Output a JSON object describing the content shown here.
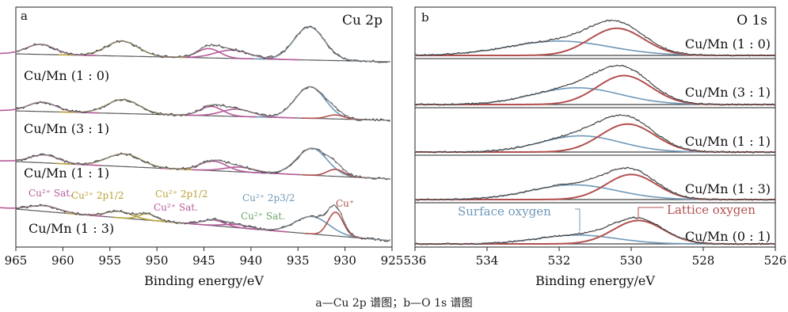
{
  "caption": "a—Cu 2p 谱图；b—O 1s 谱图",
  "chart_data": [
    {
      "type": "line",
      "panel": "a",
      "title": "Cu 2p",
      "xlabel": "Binding energy/eV",
      "xlim": [
        965,
        925
      ],
      "x_ticks": [
        965,
        960,
        955,
        950,
        945,
        940,
        935,
        930,
        925
      ],
      "colors": {
        "raw": "#333333",
        "fit": "#8a8a8a",
        "background": "#5a5a5a",
        "cu2p32": "#6f98b8",
        "cu_plus": "#b2504f",
        "sat": "#b65a9a",
        "cu2p12": "#b9a23a",
        "green": "#6ea36a"
      },
      "spectra": [
        {
          "label": "Cu/Mn (1 : 0)",
          "peaks": [
            {
              "center": 933.8,
              "height": 1.0,
              "width": 1.6,
              "component": "cu2p32"
            },
            {
              "center": 942.0,
              "height": 0.25,
              "width": 1.8,
              "component": "sat"
            },
            {
              "center": 944.5,
              "height": 0.28,
              "width": 1.2,
              "component": "sat"
            },
            {
              "center": 953.7,
              "height": 0.45,
              "width": 1.7,
              "component": "cu2p12"
            },
            {
              "center": 962.4,
              "height": 0.3,
              "width": 1.5,
              "component": "sat"
            }
          ]
        },
        {
          "label": "Cu/Mn (3 : 1)",
          "peaks": [
            {
              "center": 933.7,
              "height": 0.95,
              "width": 1.6,
              "component": "cu2p32"
            },
            {
              "center": 931.0,
              "height": 0.12,
              "width": 0.9,
              "component": "cu_plus"
            },
            {
              "center": 941.5,
              "height": 0.22,
              "width": 1.6,
              "component": "sat"
            },
            {
              "center": 944.2,
              "height": 0.28,
              "width": 1.2,
              "component": "sat"
            },
            {
              "center": 953.6,
              "height": 0.42,
              "width": 1.7,
              "component": "cu2p12"
            },
            {
              "center": 962.2,
              "height": 0.28,
              "width": 1.5,
              "component": "sat"
            }
          ]
        },
        {
          "label": "Cu/Mn (1 : 1)",
          "peaks": [
            {
              "center": 933.5,
              "height": 0.85,
              "width": 1.6,
              "component": "cu2p32"
            },
            {
              "center": 931.0,
              "height": 0.22,
              "width": 0.9,
              "component": "cu_plus"
            },
            {
              "center": 941.2,
              "height": 0.15,
              "width": 1.6,
              "component": "sat"
            },
            {
              "center": 944.0,
              "height": 0.3,
              "width": 1.4,
              "component": "sat"
            },
            {
              "center": 953.5,
              "height": 0.4,
              "width": 1.8,
              "component": "cu2p12"
            },
            {
              "center": 962.0,
              "height": 0.25,
              "width": 1.5,
              "component": "sat"
            }
          ]
        },
        {
          "label": "Cu/Mn (1 : 3)",
          "peaks": [
            {
              "center": 933.5,
              "height": 0.55,
              "width": 1.8,
              "component": "cu2p32"
            },
            {
              "center": 931.0,
              "height": 0.75,
              "width": 0.8,
              "component": "cu_plus"
            },
            {
              "center": 941.5,
              "height": 0.1,
              "width": 1.4,
              "component": "sat"
            },
            {
              "center": 944.0,
              "height": 0.18,
              "width": 1.2,
              "component": "sat"
            },
            {
              "center": 951.0,
              "height": 0.2,
              "width": 0.9,
              "component": "cu2p12"
            },
            {
              "center": 954.0,
              "height": 0.2,
              "width": 1.4,
              "component": "cu2p12"
            },
            {
              "center": 962.0,
              "height": 0.18,
              "width": 1.6,
              "component": "sat"
            }
          ]
        }
      ],
      "annotations": [
        {
          "text": "Cu²⁺ Sat.",
          "component": "sat"
        },
        {
          "text": "Cu²⁺ 2p1/2",
          "component": "cu2p12"
        },
        {
          "text": "Cu²⁺ 2p1/2",
          "component": "cu2p12"
        },
        {
          "text": "Cu²⁺  Sat.",
          "component": "sat"
        },
        {
          "text": "Cu²⁺ 2p3/2",
          "component": "cu2p32"
        },
        {
          "text": "Cu²⁺  Sat.",
          "component": "green"
        },
        {
          "text": "Cu⁺",
          "component": "cu_plus"
        }
      ]
    },
    {
      "type": "line",
      "panel": "b",
      "title": "O 1s",
      "xlabel": "Binding energy/eV",
      "xlim": [
        536,
        526
      ],
      "x_ticks": [
        536,
        534,
        532,
        530,
        528,
        526
      ],
      "colors": {
        "raw": "#333333",
        "fit": "#9a9a9a",
        "background": "#444444",
        "surface": "#6f98b8",
        "lattice": "#b2504f"
      },
      "spectra": [
        {
          "label": "Cu/Mn (1 : 0)",
          "surface": {
            "center": 532.0,
            "height": 0.45,
            "width": 1.4
          },
          "lattice": {
            "center": 530.4,
            "height": 0.85,
            "width": 0.75
          }
        },
        {
          "label": "Cu/Mn (3 : 1)",
          "surface": {
            "center": 531.5,
            "height": 0.55,
            "width": 1.2
          },
          "lattice": {
            "center": 530.2,
            "height": 0.95,
            "width": 0.75
          }
        },
        {
          "label": "Cu/Mn (1 : 1)",
          "surface": {
            "center": 531.4,
            "height": 0.55,
            "width": 1.1
          },
          "lattice": {
            "center": 530.1,
            "height": 0.95,
            "width": 0.75
          }
        },
        {
          "label": "Cu/Mn (1 : 3)",
          "surface": {
            "center": 531.6,
            "height": 0.5,
            "width": 1.2
          },
          "lattice": {
            "center": 530.0,
            "height": 0.85,
            "width": 0.7
          }
        },
        {
          "label": "Cu/Mn (0 : 1)",
          "surface": {
            "center": 531.5,
            "height": 0.32,
            "width": 1.1
          },
          "lattice": {
            "center": 529.8,
            "height": 0.85,
            "width": 0.7
          }
        }
      ],
      "annotations": [
        {
          "text": "Surface oxygen",
          "component": "surface"
        },
        {
          "text": "Lattice oxygen",
          "component": "lattice"
        }
      ]
    }
  ]
}
